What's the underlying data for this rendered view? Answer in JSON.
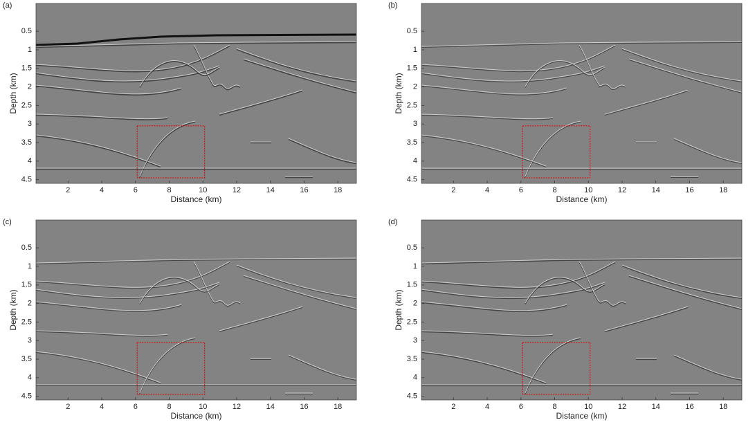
{
  "chart_data": [
    {
      "type": "image",
      "panel": "(a)",
      "xlabel": "Distance (km)",
      "ylabel": "Depth (km)",
      "xlim": [
        0.1,
        19.1
      ],
      "ylim": [
        -0.25,
        4.6
      ],
      "xticks": [
        2,
        4,
        6,
        8,
        10,
        12,
        14,
        16,
        18
      ],
      "yticks": [
        0.5,
        1,
        1.5,
        2,
        2.5,
        3,
        3.5,
        4,
        4.5
      ],
      "highlight": {
        "x": [
          6.1,
          10.1
        ],
        "y": [
          3.05,
          4.45
        ],
        "color": "#e00000"
      }
    },
    {
      "type": "image",
      "panel": "(b)",
      "xlabel": "Distance (km)",
      "ylabel": "Depth (km)",
      "xlim": [
        0.1,
        19.1
      ],
      "ylim": [
        -0.25,
        4.6
      ],
      "xticks": [
        2,
        4,
        6,
        8,
        10,
        12,
        14,
        16,
        18
      ],
      "yticks": [
        0.5,
        1,
        1.5,
        2,
        2.5,
        3,
        3.5,
        4,
        4.5
      ],
      "highlight": {
        "x": [
          6.1,
          10.1
        ],
        "y": [
          3.05,
          4.45
        ],
        "color": "#e00000"
      }
    },
    {
      "type": "image",
      "panel": "(c)",
      "xlabel": "Distance (km)",
      "ylabel": "Depth (km)",
      "xlim": [
        0.1,
        19.1
      ],
      "ylim": [
        -0.25,
        4.6
      ],
      "xticks": [
        2,
        4,
        6,
        8,
        10,
        12,
        14,
        16,
        18
      ],
      "yticks": [
        0.5,
        1,
        1.5,
        2,
        2.5,
        3,
        3.5,
        4,
        4.5
      ],
      "highlight": {
        "x": [
          6.1,
          10.1
        ],
        "y": [
          3.05,
          4.45
        ],
        "color": "#e00000"
      }
    },
    {
      "type": "image",
      "panel": "(d)",
      "xlabel": "Distance (km)",
      "ylabel": "Depth (km)",
      "xlim": [
        0.1,
        19.1
      ],
      "ylim": [
        -0.25,
        4.6
      ],
      "xticks": [
        2,
        4,
        6,
        8,
        10,
        12,
        14,
        16,
        18
      ],
      "yticks": [
        0.5,
        1,
        1.5,
        2,
        2.5,
        3,
        3.5,
        4,
        4.5
      ],
      "highlight": {
        "x": [
          6.1,
          10.1
        ],
        "y": [
          3.05,
          4.45
        ],
        "color": "#e00000"
      }
    }
  ]
}
